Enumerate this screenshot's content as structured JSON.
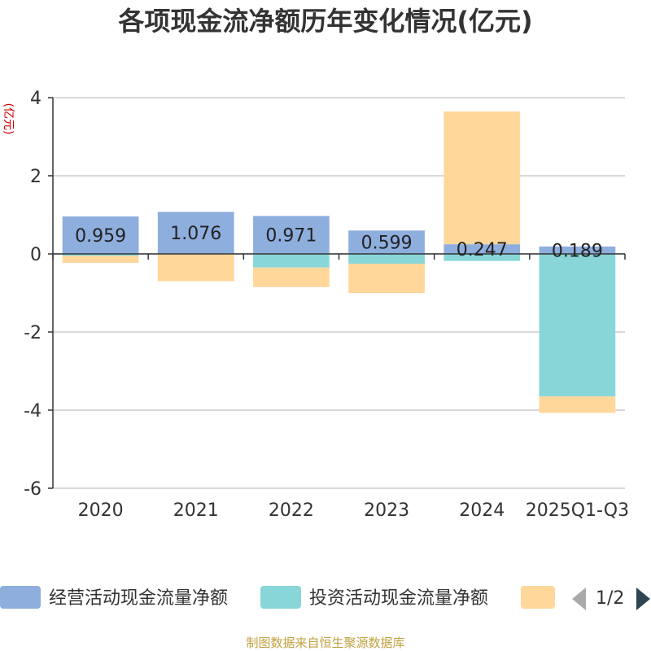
{
  "chart_data": {
    "type": "bar",
    "title": "各项现金流净额历年变化情况(亿元)",
    "ylabel": "(亿元)",
    "xlabel": "",
    "ylim": [
      -6,
      4
    ],
    "yticks": [
      4,
      2,
      0,
      -2,
      -4,
      -6
    ],
    "categories": [
      "2020",
      "2021",
      "2022",
      "2023",
      "2024",
      "2025Q1-Q3"
    ],
    "series": [
      {
        "name": "经营活动现金流量净额",
        "color": "#8eaede",
        "values": [
          0.959,
          1.076,
          0.971,
          0.599,
          0.247,
          0.189
        ],
        "labels": [
          "0.959",
          "1.076",
          "0.971",
          "0.599",
          "0.247",
          "0.189"
        ]
      },
      {
        "name": "投资活动现金流量净额",
        "color": "#88d6d8",
        "values": [
          -0.05,
          0.0,
          -0.35,
          -0.25,
          -0.18,
          -3.65
        ]
      },
      {
        "name": "",
        "color": "#ffd79a",
        "values": [
          -0.18,
          -0.7,
          -0.5,
          -0.75,
          3.4,
          -0.42
        ]
      }
    ],
    "legend_page": "1/2",
    "grid": true
  },
  "footer": {
    "source": "制图数据来自恒生聚源数据库",
    "color": "#c0a040"
  },
  "unit_color": "#d00000"
}
